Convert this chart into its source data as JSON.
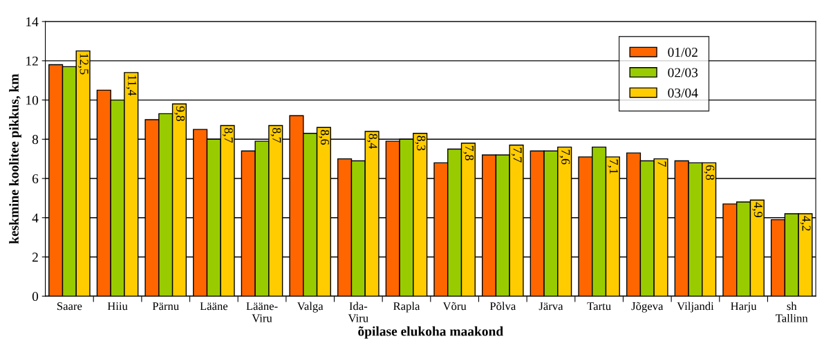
{
  "chart_data": {
    "type": "bar",
    "xlabel": "õpilase elukoha maakond",
    "ylabel": "keskmine koolitee pikkus, km",
    "categories": [
      "Saare",
      "Hiiu",
      "Pärnu",
      "Lääne",
      "Lääne-\nViru",
      "Valga",
      "Ida-\nViru",
      "Rapla",
      "Võru",
      "Põlva",
      "Järva",
      "Tartu",
      "Jõgeva",
      "Viljandi",
      "Harju",
      "sh\nTallinn"
    ],
    "series": [
      {
        "name": "01/02",
        "color": "#ff6600",
        "values": [
          11.8,
          10.5,
          9.0,
          8.5,
          7.4,
          9.2,
          7.0,
          7.9,
          6.8,
          7.2,
          7.4,
          7.1,
          7.3,
          6.9,
          4.7,
          3.9
        ]
      },
      {
        "name": "02/03",
        "color": "#99cc00",
        "values": [
          11.7,
          10.0,
          9.3,
          8.0,
          7.9,
          8.3,
          6.9,
          8.0,
          7.5,
          7.2,
          7.4,
          7.6,
          6.9,
          6.8,
          4.8,
          4.2
        ]
      },
      {
        "name": "03/04",
        "color": "#ffcc00",
        "values": [
          12.5,
          11.4,
          9.8,
          8.7,
          8.7,
          8.6,
          8.4,
          8.3,
          7.8,
          7.7,
          7.6,
          7.1,
          7,
          6.8,
          4.9,
          4.2
        ],
        "value_labels": [
          "12,5",
          "11,4",
          "9,8",
          "8,7",
          "8,7",
          "8,6",
          "8,4",
          "8,3",
          "7,8",
          "7,7",
          "7,6",
          "7,1",
          "7",
          "6,8",
          "4,9",
          "4,2"
        ]
      }
    ],
    "ylim": [
      0,
      14
    ],
    "yticks": [
      0,
      2,
      4,
      6,
      8,
      10,
      12,
      14
    ],
    "grid": "y",
    "legend": "top right"
  }
}
